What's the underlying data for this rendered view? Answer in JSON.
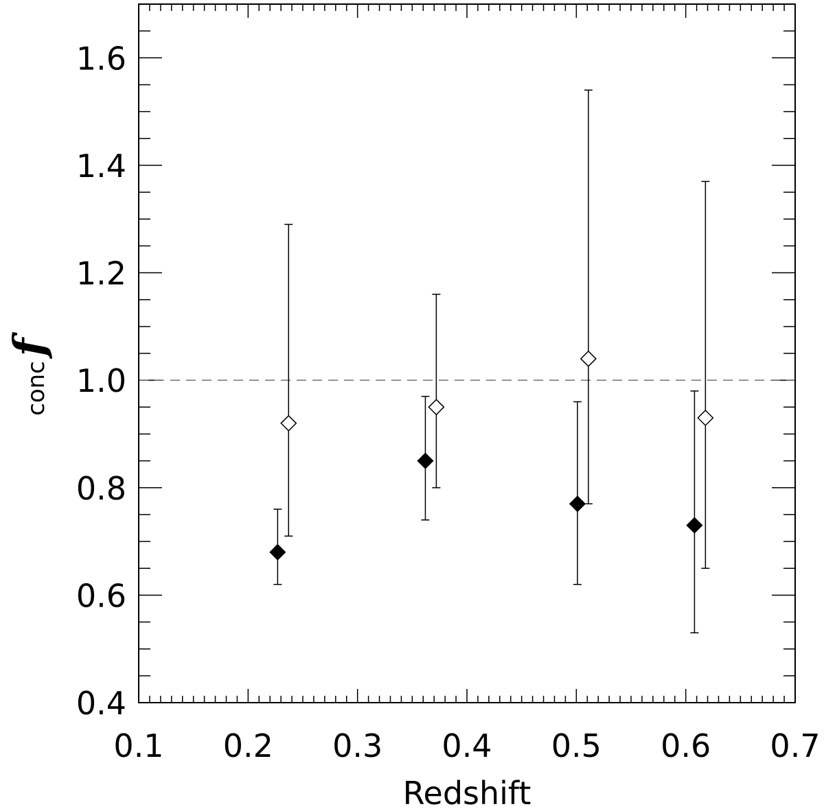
{
  "chart_data": {
    "type": "scatter",
    "xlabel": "Redshift",
    "ylabel_main": "f",
    "ylabel_sub": "conc",
    "xlim": [
      0.1,
      0.7
    ],
    "ylim": [
      0.4,
      1.7
    ],
    "xticks": [
      "0.1",
      "0.2",
      "0.3",
      "0.4",
      "0.5",
      "0.6",
      "0.7"
    ],
    "yticks": [
      "0.4",
      "0.6",
      "0.8",
      "1.0",
      "1.2",
      "1.4",
      "1.6"
    ],
    "reference_line": {
      "y": 1.0,
      "style": "dashed",
      "color": "#707070"
    },
    "grid": false,
    "series": [
      {
        "marker": "filled-diamond",
        "color": "#000000",
        "points": [
          {
            "x": 0.227,
            "y": 0.68,
            "ylo": 0.62,
            "yhi": 0.76
          },
          {
            "x": 0.362,
            "y": 0.85,
            "ylo": 0.74,
            "yhi": 0.97
          },
          {
            "x": 0.501,
            "y": 0.77,
            "ylo": 0.62,
            "yhi": 0.96
          },
          {
            "x": 0.608,
            "y": 0.73,
            "ylo": 0.53,
            "yhi": 0.98
          }
        ]
      },
      {
        "marker": "open-diamond",
        "color": "#000000",
        "points": [
          {
            "x": 0.237,
            "y": 0.92,
            "ylo": 0.71,
            "yhi": 1.29
          },
          {
            "x": 0.372,
            "y": 0.95,
            "ylo": 0.8,
            "yhi": 1.16
          },
          {
            "x": 0.511,
            "y": 1.04,
            "ylo": 0.77,
            "yhi": 1.54
          },
          {
            "x": 0.618,
            "y": 0.93,
            "ylo": 0.65,
            "yhi": 1.37
          }
        ]
      }
    ]
  }
}
